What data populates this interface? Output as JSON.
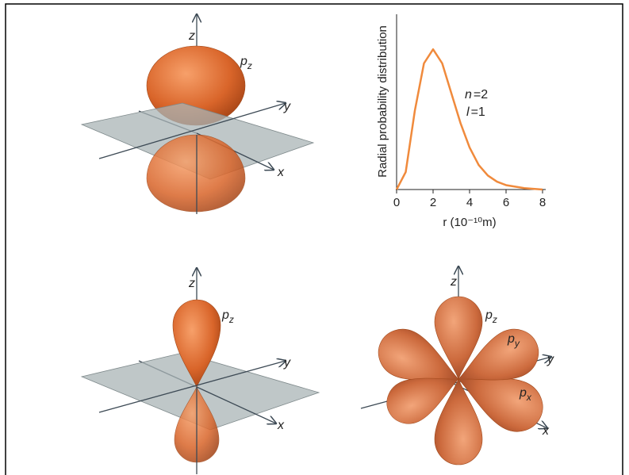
{
  "chart_data": {
    "type": "line",
    "ylabel": "Radial probability distribution",
    "xlabel": "r (10⁻¹⁰m)",
    "x": [
      0,
      0.5,
      1,
      1.5,
      2,
      2.5,
      3,
      3.5,
      4,
      4.5,
      5,
      5.5,
      6,
      7,
      8
    ],
    "values": [
      0,
      0.1,
      0.45,
      0.72,
      0.8,
      0.72,
      0.55,
      0.38,
      0.24,
      0.14,
      0.08,
      0.045,
      0.025,
      0.008,
      0
    ],
    "color": "#f08a3c",
    "xlim": [
      0,
      8
    ],
    "xticks": [
      0,
      2,
      4,
      6,
      8
    ],
    "ylim": [
      0,
      1
    ],
    "annotations": [
      {
        "var": "n",
        "eq": "=2"
      },
      {
        "var": "l",
        "eq": "=1"
      }
    ]
  },
  "diagrams": [
    {
      "axes": {
        "z": "z",
        "y": "y",
        "x": "x"
      },
      "labels": [
        {
          "base": "p",
          "sub": "z"
        }
      ]
    },
    {
      "axes": {
        "z": "z",
        "y": "y",
        "x": "x"
      },
      "labels": [
        {
          "base": "p",
          "sub": "z"
        }
      ]
    },
    {
      "axes": {
        "z": "z",
        "y": "y",
        "x": "x"
      },
      "labels": [
        {
          "base": "p",
          "sub": "z"
        },
        {
          "base": "p",
          "sub": "y"
        },
        {
          "base": "p",
          "sub": "x"
        }
      ]
    }
  ]
}
